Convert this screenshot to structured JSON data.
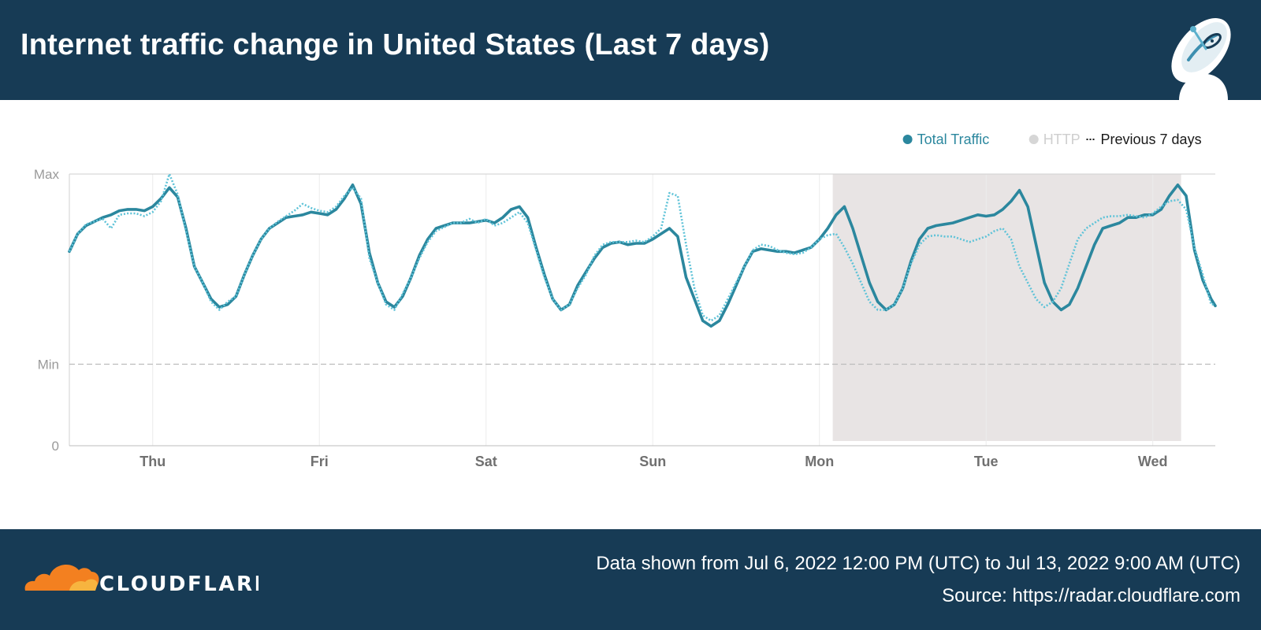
{
  "header": {
    "title": "Internet traffic change in United States (Last 7 days)",
    "icon": "satellite-dish-icon"
  },
  "footer": {
    "brand": "CLOUDFLARE",
    "range_text": "Data shown from Jul 6, 2022 12:00 PM (UTC) to Jul 13, 2022 9:00 AM (UTC)",
    "source_text": "Source: https://radar.cloudflare.com"
  },
  "colors": {
    "header_bg": "#173b55",
    "total_traffic": "#2b879e",
    "http": "#d6d6d6",
    "previous": "#5fc3d8",
    "highlight": "#e8e4e4",
    "logo_orange": "#f38020"
  },
  "chart_data": {
    "type": "line",
    "title": "Internet traffic change in United States (Last 7 days)",
    "legend": {
      "position": "top-right",
      "entries": [
        {
          "label": "Total Traffic",
          "marker": "dot",
          "color": "#2b879e"
        },
        {
          "label": "HTTP",
          "marker": "dot",
          "color": "#d6d6d6"
        },
        {
          "label": "Previous 7 days",
          "marker": "dots",
          "color": "#1a1a1a"
        }
      ]
    },
    "y_axis": {
      "tick_labels": [
        "Max",
        "Min",
        "0"
      ],
      "tick_values": [
        1,
        0.3,
        0
      ]
    },
    "x_axis": {
      "tick_labels": [
        "Thu",
        "Fri",
        "Sat",
        "Sun",
        "Mon",
        "Tue",
        "Wed"
      ],
      "tick_days": [
        0.5,
        1.5,
        2.5,
        3.5,
        4.5,
        5.5,
        6.5
      ]
    },
    "x_range_days": [
      0,
      6.875
    ],
    "y_range": [
      0,
      1
    ],
    "highlight_range_days": [
      4.58,
      6.67
    ],
    "grid": {
      "vertical": true,
      "min_line": "dashed"
    },
    "series": [
      {
        "name": "Total Traffic",
        "style": "solid",
        "points": [
          [
            0,
            0.715
          ],
          [
            0.05,
            0.78
          ],
          [
            0.1,
            0.81
          ],
          [
            0.15,
            0.825
          ],
          [
            0.2,
            0.84
          ],
          [
            0.25,
            0.85
          ],
          [
            0.3,
            0.865
          ],
          [
            0.35,
            0.87
          ],
          [
            0.4,
            0.87
          ],
          [
            0.45,
            0.865
          ],
          [
            0.5,
            0.88
          ],
          [
            0.55,
            0.91
          ],
          [
            0.6,
            0.95
          ],
          [
            0.65,
            0.915
          ],
          [
            0.7,
            0.8
          ],
          [
            0.75,
            0.66
          ],
          [
            0.8,
            0.6
          ],
          [
            0.85,
            0.54
          ],
          [
            0.9,
            0.51
          ],
          [
            0.95,
            0.52
          ],
          [
            1.0,
            0.55
          ],
          [
            1.05,
            0.63
          ],
          [
            1.1,
            0.7
          ],
          [
            1.15,
            0.76
          ],
          [
            1.2,
            0.8
          ],
          [
            1.25,
            0.82
          ],
          [
            1.3,
            0.84
          ],
          [
            1.35,
            0.845
          ],
          [
            1.4,
            0.85
          ],
          [
            1.45,
            0.86
          ],
          [
            1.5,
            0.855
          ],
          [
            1.55,
            0.85
          ],
          [
            1.6,
            0.87
          ],
          [
            1.65,
            0.91
          ],
          [
            1.7,
            0.96
          ],
          [
            1.75,
            0.89
          ],
          [
            1.8,
            0.71
          ],
          [
            1.85,
            0.6
          ],
          [
            1.9,
            0.53
          ],
          [
            1.95,
            0.51
          ],
          [
            2.0,
            0.55
          ],
          [
            2.05,
            0.62
          ],
          [
            2.1,
            0.7
          ],
          [
            2.15,
            0.76
          ],
          [
            2.2,
            0.8
          ],
          [
            2.25,
            0.81
          ],
          [
            2.3,
            0.82
          ],
          [
            2.35,
            0.82
          ],
          [
            2.4,
            0.82
          ],
          [
            2.45,
            0.825
          ],
          [
            2.5,
            0.83
          ],
          [
            2.55,
            0.82
          ],
          [
            2.6,
            0.84
          ],
          [
            2.65,
            0.87
          ],
          [
            2.7,
            0.88
          ],
          [
            2.75,
            0.84
          ],
          [
            2.8,
            0.73
          ],
          [
            2.85,
            0.63
          ],
          [
            2.9,
            0.54
          ],
          [
            2.95,
            0.5
          ],
          [
            3.0,
            0.52
          ],
          [
            3.05,
            0.59
          ],
          [
            3.1,
            0.64
          ],
          [
            3.15,
            0.69
          ],
          [
            3.2,
            0.73
          ],
          [
            3.25,
            0.745
          ],
          [
            3.3,
            0.75
          ],
          [
            3.35,
            0.74
          ],
          [
            3.4,
            0.745
          ],
          [
            3.45,
            0.745
          ],
          [
            3.5,
            0.76
          ],
          [
            3.55,
            0.78
          ],
          [
            3.6,
            0.8
          ],
          [
            3.65,
            0.77
          ],
          [
            3.7,
            0.62
          ],
          [
            3.75,
            0.54
          ],
          [
            3.8,
            0.46
          ],
          [
            3.85,
            0.44
          ],
          [
            3.9,
            0.46
          ],
          [
            3.95,
            0.52
          ],
          [
            4.0,
            0.59
          ],
          [
            4.05,
            0.66
          ],
          [
            4.1,
            0.715
          ],
          [
            4.15,
            0.725
          ],
          [
            4.2,
            0.72
          ],
          [
            4.25,
            0.715
          ],
          [
            4.3,
            0.715
          ],
          [
            4.35,
            0.71
          ],
          [
            4.4,
            0.72
          ],
          [
            4.45,
            0.73
          ],
          [
            4.5,
            0.76
          ],
          [
            4.55,
            0.8
          ],
          [
            4.6,
            0.85
          ],
          [
            4.65,
            0.88
          ],
          [
            4.7,
            0.8
          ],
          [
            4.75,
            0.7
          ],
          [
            4.8,
            0.6
          ],
          [
            4.85,
            0.53
          ],
          [
            4.9,
            0.5
          ],
          [
            4.95,
            0.52
          ],
          [
            5.0,
            0.58
          ],
          [
            5.05,
            0.68
          ],
          [
            5.1,
            0.76
          ],
          [
            5.15,
            0.8
          ],
          [
            5.2,
            0.81
          ],
          [
            5.25,
            0.815
          ],
          [
            5.3,
            0.82
          ],
          [
            5.35,
            0.83
          ],
          [
            5.4,
            0.84
          ],
          [
            5.45,
            0.85
          ],
          [
            5.5,
            0.845
          ],
          [
            5.55,
            0.85
          ],
          [
            5.6,
            0.87
          ],
          [
            5.65,
            0.9
          ],
          [
            5.7,
            0.94
          ],
          [
            5.75,
            0.88
          ],
          [
            5.8,
            0.74
          ],
          [
            5.85,
            0.6
          ],
          [
            5.9,
            0.53
          ],
          [
            5.95,
            0.5
          ],
          [
            6.0,
            0.52
          ],
          [
            6.05,
            0.58
          ],
          [
            6.1,
            0.66
          ],
          [
            6.15,
            0.74
          ],
          [
            6.2,
            0.8
          ],
          [
            6.25,
            0.81
          ],
          [
            6.3,
            0.82
          ],
          [
            6.35,
            0.84
          ],
          [
            6.4,
            0.84
          ],
          [
            6.45,
            0.85
          ],
          [
            6.5,
            0.85
          ],
          [
            6.55,
            0.87
          ],
          [
            6.6,
            0.92
          ],
          [
            6.65,
            0.96
          ],
          [
            6.7,
            0.92
          ],
          [
            6.75,
            0.72
          ],
          [
            6.8,
            0.61
          ],
          [
            6.85,
            0.54
          ],
          [
            6.875,
            0.515
          ]
        ]
      },
      {
        "name": "Previous 7 days",
        "style": "dotted",
        "points": [
          [
            0,
            0.715
          ],
          [
            0.05,
            0.78
          ],
          [
            0.1,
            0.815
          ],
          [
            0.15,
            0.825
          ],
          [
            0.2,
            0.835
          ],
          [
            0.25,
            0.8
          ],
          [
            0.3,
            0.85
          ],
          [
            0.35,
            0.855
          ],
          [
            0.4,
            0.855
          ],
          [
            0.45,
            0.845
          ],
          [
            0.5,
            0.86
          ],
          [
            0.55,
            0.9
          ],
          [
            0.6,
            1.0
          ],
          [
            0.65,
            0.925
          ],
          [
            0.7,
            0.79
          ],
          [
            0.75,
            0.66
          ],
          [
            0.8,
            0.6
          ],
          [
            0.85,
            0.53
          ],
          [
            0.9,
            0.5
          ],
          [
            0.95,
            0.53
          ],
          [
            1.0,
            0.55
          ],
          [
            1.05,
            0.63
          ],
          [
            1.1,
            0.7
          ],
          [
            1.15,
            0.76
          ],
          [
            1.2,
            0.8
          ],
          [
            1.25,
            0.825
          ],
          [
            1.3,
            0.845
          ],
          [
            1.35,
            0.865
          ],
          [
            1.4,
            0.89
          ],
          [
            1.45,
            0.875
          ],
          [
            1.5,
            0.865
          ],
          [
            1.55,
            0.86
          ],
          [
            1.6,
            0.88
          ],
          [
            1.65,
            0.92
          ],
          [
            1.7,
            0.95
          ],
          [
            1.75,
            0.91
          ],
          [
            1.8,
            0.69
          ],
          [
            1.85,
            0.6
          ],
          [
            1.9,
            0.52
          ],
          [
            1.95,
            0.5
          ],
          [
            2.0,
            0.56
          ],
          [
            2.05,
            0.62
          ],
          [
            2.1,
            0.69
          ],
          [
            2.15,
            0.75
          ],
          [
            2.2,
            0.79
          ],
          [
            2.25,
            0.805
          ],
          [
            2.3,
            0.82
          ],
          [
            2.35,
            0.82
          ],
          [
            2.4,
            0.835
          ],
          [
            2.45,
            0.82
          ],
          [
            2.5,
            0.835
          ],
          [
            2.55,
            0.81
          ],
          [
            2.6,
            0.82
          ],
          [
            2.65,
            0.84
          ],
          [
            2.7,
            0.86
          ],
          [
            2.75,
            0.82
          ],
          [
            2.8,
            0.72
          ],
          [
            2.85,
            0.62
          ],
          [
            2.9,
            0.54
          ],
          [
            2.95,
            0.5
          ],
          [
            3.0,
            0.52
          ],
          [
            3.05,
            0.58
          ],
          [
            3.1,
            0.63
          ],
          [
            3.15,
            0.7
          ],
          [
            3.2,
            0.74
          ],
          [
            3.25,
            0.75
          ],
          [
            3.3,
            0.75
          ],
          [
            3.35,
            0.75
          ],
          [
            3.4,
            0.755
          ],
          [
            3.45,
            0.75
          ],
          [
            3.5,
            0.77
          ],
          [
            3.55,
            0.8
          ],
          [
            3.6,
            0.93
          ],
          [
            3.65,
            0.92
          ],
          [
            3.7,
            0.74
          ],
          [
            3.75,
            0.58
          ],
          [
            3.8,
            0.48
          ],
          [
            3.85,
            0.46
          ],
          [
            3.9,
            0.48
          ],
          [
            3.95,
            0.54
          ],
          [
            4.0,
            0.6
          ],
          [
            4.05,
            0.66
          ],
          [
            4.1,
            0.72
          ],
          [
            4.15,
            0.74
          ],
          [
            4.2,
            0.735
          ],
          [
            4.25,
            0.72
          ],
          [
            4.3,
            0.71
          ],
          [
            4.35,
            0.705
          ],
          [
            4.4,
            0.71
          ],
          [
            4.45,
            0.73
          ],
          [
            4.5,
            0.76
          ],
          [
            4.55,
            0.775
          ],
          [
            4.6,
            0.78
          ],
          [
            4.65,
            0.73
          ],
          [
            4.7,
            0.67
          ],
          [
            4.75,
            0.6
          ],
          [
            4.8,
            0.53
          ],
          [
            4.85,
            0.5
          ],
          [
            4.9,
            0.5
          ],
          [
            4.95,
            0.52
          ],
          [
            5.0,
            0.58
          ],
          [
            5.05,
            0.67
          ],
          [
            5.1,
            0.74
          ],
          [
            5.15,
            0.77
          ],
          [
            5.2,
            0.775
          ],
          [
            5.25,
            0.77
          ],
          [
            5.3,
            0.77
          ],
          [
            5.35,
            0.76
          ],
          [
            5.4,
            0.75
          ],
          [
            5.45,
            0.76
          ],
          [
            5.5,
            0.77
          ],
          [
            5.55,
            0.79
          ],
          [
            5.6,
            0.8
          ],
          [
            5.65,
            0.76
          ],
          [
            5.7,
            0.66
          ],
          [
            5.75,
            0.6
          ],
          [
            5.8,
            0.54
          ],
          [
            5.85,
            0.51
          ],
          [
            5.9,
            0.53
          ],
          [
            5.95,
            0.58
          ],
          [
            6.0,
            0.67
          ],
          [
            6.05,
            0.76
          ],
          [
            6.1,
            0.8
          ],
          [
            6.15,
            0.82
          ],
          [
            6.2,
            0.84
          ],
          [
            6.25,
            0.845
          ],
          [
            6.3,
            0.845
          ],
          [
            6.35,
            0.85
          ],
          [
            6.4,
            0.845
          ],
          [
            6.45,
            0.84
          ],
          [
            6.5,
            0.855
          ],
          [
            6.55,
            0.88
          ],
          [
            6.6,
            0.9
          ],
          [
            6.65,
            0.905
          ],
          [
            6.7,
            0.87
          ],
          [
            6.75,
            0.73
          ],
          [
            6.8,
            0.63
          ],
          [
            6.85,
            0.52
          ],
          [
            6.875,
            0.52
          ]
        ]
      }
    ]
  }
}
